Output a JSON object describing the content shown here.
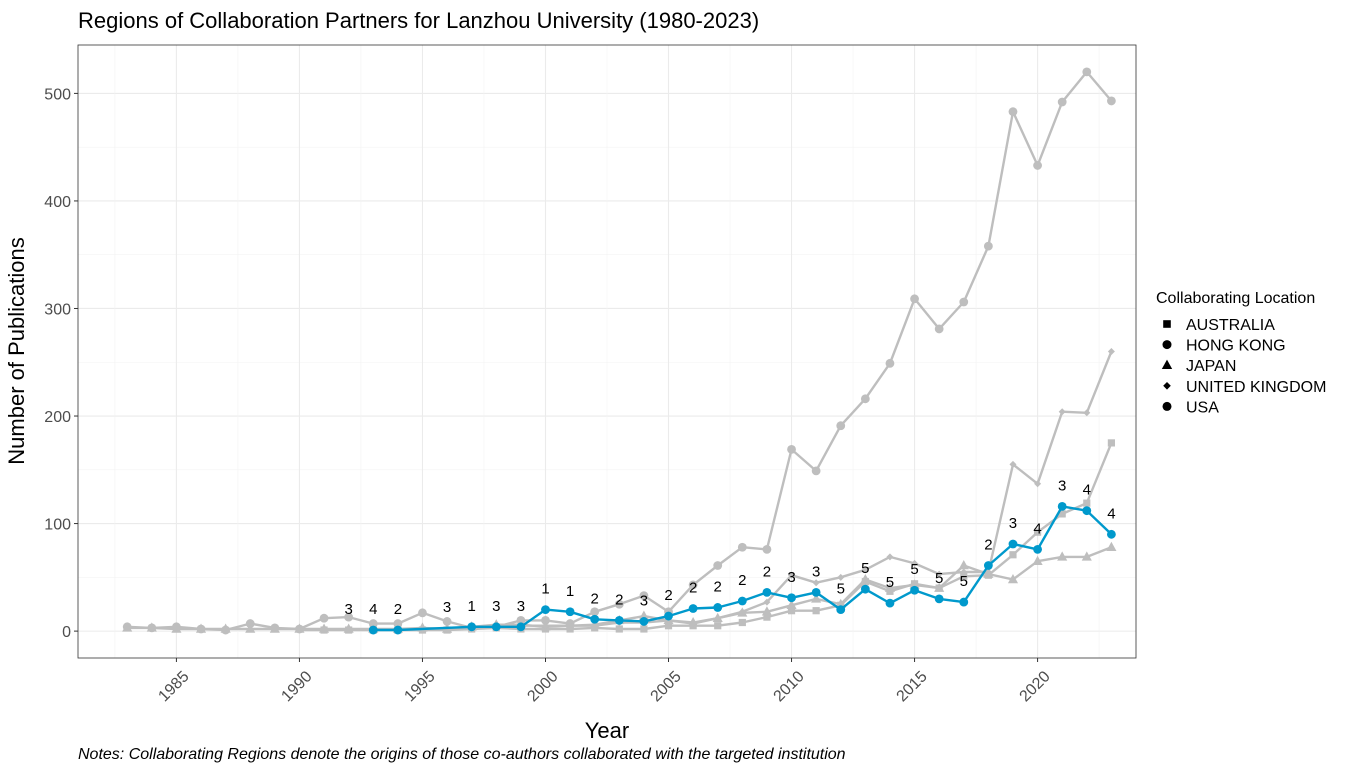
{
  "chart_data": {
    "type": "line",
    "title": "Regions of Collaboration Partners for Lanzhou University (1980-2023)",
    "note": "Notes: Collaborating Regions denote the origins of those co-authors collaborated with the targeted institution",
    "xlabel": "Year",
    "ylabel": "Number of Publications",
    "xlim": [
      1981,
      2024
    ],
    "ylim": [
      -25,
      545
    ],
    "x_ticks": [
      1985,
      1990,
      1995,
      2000,
      2005,
      2010,
      2015,
      2020
    ],
    "y_ticks": [
      0,
      100,
      200,
      300,
      400,
      500
    ],
    "grid": true,
    "legend": {
      "title": "Collaborating Location",
      "position": "right"
    },
    "highlight_color": "#0099cc",
    "muted_color": "#bebebe",
    "series": [
      {
        "name": "AUSTRALIA",
        "shape": "square",
        "highlight": false,
        "x": [
          1991,
          1992,
          1993,
          1994,
          1995,
          1996,
          1997,
          1998,
          1999,
          2000,
          2001,
          2002,
          2003,
          2004,
          2005,
          2006,
          2007,
          2008,
          2009,
          2010,
          2011,
          2012,
          2013,
          2014,
          2015,
          2016,
          2017,
          2018,
          2019,
          2020,
          2021,
          2022,
          2023
        ],
        "y": [
          1,
          1,
          1,
          1,
          1,
          1,
          2,
          3,
          2,
          2,
          2,
          3,
          2,
          2,
          5,
          5,
          5,
          8,
          13,
          19,
          19,
          24,
          46,
          37,
          44,
          40,
          51,
          52,
          71,
          92,
          109,
          119,
          175
        ]
      },
      {
        "name": "HONG KONG",
        "shape": "circle",
        "highlight": false,
        "x": [
          1983,
          1984,
          1985,
          1986,
          1987,
          1988,
          1989,
          1990,
          1991,
          1992,
          1993,
          1994,
          1995,
          1996,
          1997,
          1998,
          1999,
          2000,
          2001,
          2002,
          2003,
          2004,
          2005,
          2006,
          2007,
          2008,
          2009,
          2010,
          2011,
          2012,
          2013,
          2014,
          2015,
          2016,
          2017,
          2018,
          2019,
          2020,
          2021,
          2022,
          2023
        ],
        "y": [
          4,
          3,
          4,
          2,
          1,
          7,
          3,
          2,
          12,
          13,
          7,
          7,
          17,
          9,
          3,
          4,
          10,
          10,
          7,
          18,
          25,
          33,
          18,
          43,
          61,
          78,
          76,
          169,
          149,
          191,
          216,
          249,
          309,
          281,
          306,
          358,
          483,
          433,
          492,
          520,
          493
        ]
      },
      {
        "name": "JAPAN",
        "shape": "triangle",
        "highlight": false,
        "x": [
          1983,
          1984,
          1985,
          1986,
          1987,
          1988,
          1989,
          1990,
          1991,
          1992,
          1993,
          1994,
          1995,
          1996,
          1997,
          1998,
          1999,
          2000,
          2001,
          2002,
          2003,
          2004,
          2005,
          2006,
          2007,
          2008,
          2009,
          2010,
          2011,
          2012,
          2013,
          2014,
          2015,
          2016,
          2017,
          2018,
          2019,
          2020,
          2021,
          2022,
          2023
        ],
        "y": [
          3,
          3,
          2,
          2,
          2,
          2,
          2,
          2,
          2,
          2,
          2,
          2,
          3,
          2,
          4,
          6,
          6,
          4,
          5,
          6,
          10,
          14,
          10,
          8,
          12,
          17,
          18,
          24,
          30,
          25,
          48,
          40,
          43,
          40,
          61,
          53,
          48,
          65,
          69,
          69,
          78
        ]
      },
      {
        "name": "UNITED KINGDOM",
        "shape": "diamond",
        "highlight": false,
        "x": [
          1990,
          1991,
          1992,
          1993,
          1994,
          1995,
          1996,
          1997,
          1998,
          1999,
          2000,
          2001,
          2002,
          2003,
          2004,
          2005,
          2006,
          2007,
          2008,
          2009,
          2010,
          2011,
          2012,
          2013,
          2014,
          2015,
          2016,
          2017,
          2018,
          2019,
          2020,
          2021,
          2022,
          2023
        ],
        "y": [
          1,
          1,
          2,
          1,
          1,
          1,
          2,
          3,
          4,
          5,
          5,
          5,
          5,
          8,
          8,
          10,
          7,
          12,
          18,
          27,
          52,
          45,
          50,
          57,
          69,
          63,
          53,
          55,
          55,
          155,
          137,
          204,
          203,
          260
        ]
      },
      {
        "name": "USA",
        "shape": "circle",
        "highlight": true,
        "x": [
          1993,
          1994,
          1997,
          1998,
          1999,
          2000,
          2001,
          2002,
          2003,
          2004,
          2005,
          2006,
          2007,
          2008,
          2009,
          2010,
          2011,
          2012,
          2013,
          2014,
          2015,
          2016,
          2017,
          2018,
          2019,
          2020,
          2021,
          2022,
          2023
        ],
        "y": [
          1,
          1,
          4,
          4,
          4,
          20,
          18,
          11,
          10,
          9,
          14,
          21,
          22,
          28,
          36,
          31,
          36,
          20,
          39,
          26,
          38,
          30,
          27,
          61,
          81,
          76,
          116,
          112,
          90
        ],
        "rank_labels": {
          "x": [
            1992,
            1993,
            1994,
            1996,
            1997,
            1998,
            1999,
            2000,
            2001,
            2002,
            2003,
            2004,
            2005,
            2006,
            2007,
            2008,
            2009,
            2010,
            2011,
            2012,
            2013,
            2014,
            2015,
            2016,
            2017,
            2018,
            2019,
            2020,
            2021,
            2022,
            2023
          ],
          "y": [
            1,
            1,
            1,
            3,
            4,
            4,
            4,
            20,
            18,
            11,
            10,
            9,
            14,
            21,
            22,
            28,
            36,
            31,
            36,
            20,
            39,
            26,
            38,
            30,
            27,
            61,
            81,
            76,
            116,
            112,
            90
          ],
          "labels": [
            "3",
            "4",
            "2",
            "3",
            "1",
            "3",
            "3",
            "1",
            "1",
            "2",
            "2",
            "3",
            "2",
            "2",
            "2",
            "2",
            "2",
            "3",
            "3",
            "5",
            "5",
            "5",
            "5",
            "5",
            "5",
            "2",
            "3",
            "4",
            "3",
            "4",
            "4"
          ]
        }
      }
    ]
  }
}
